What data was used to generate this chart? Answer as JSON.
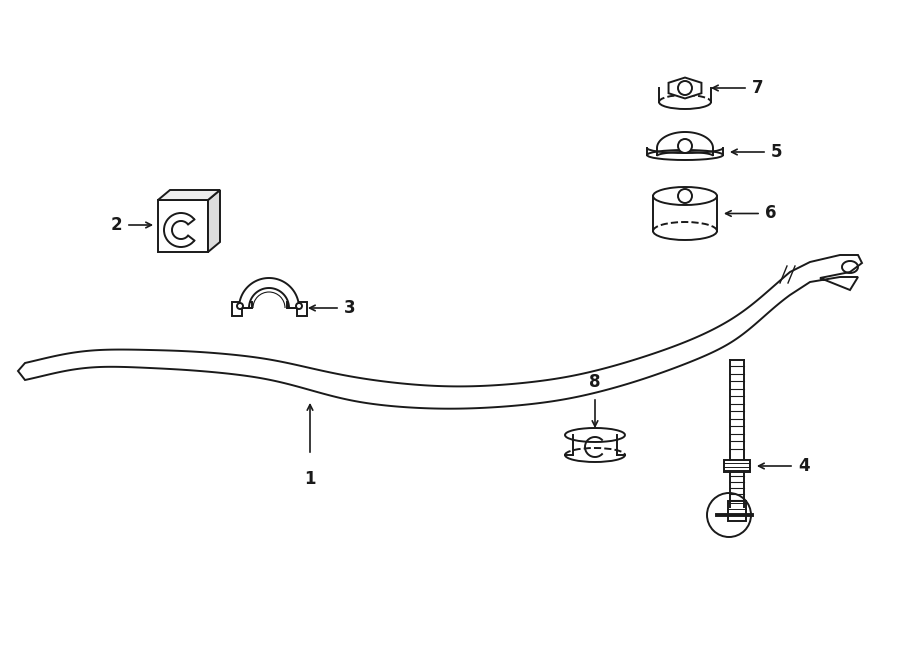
{
  "background_color": "#ffffff",
  "line_color": "#1a1a1a",
  "lw": 1.4
}
